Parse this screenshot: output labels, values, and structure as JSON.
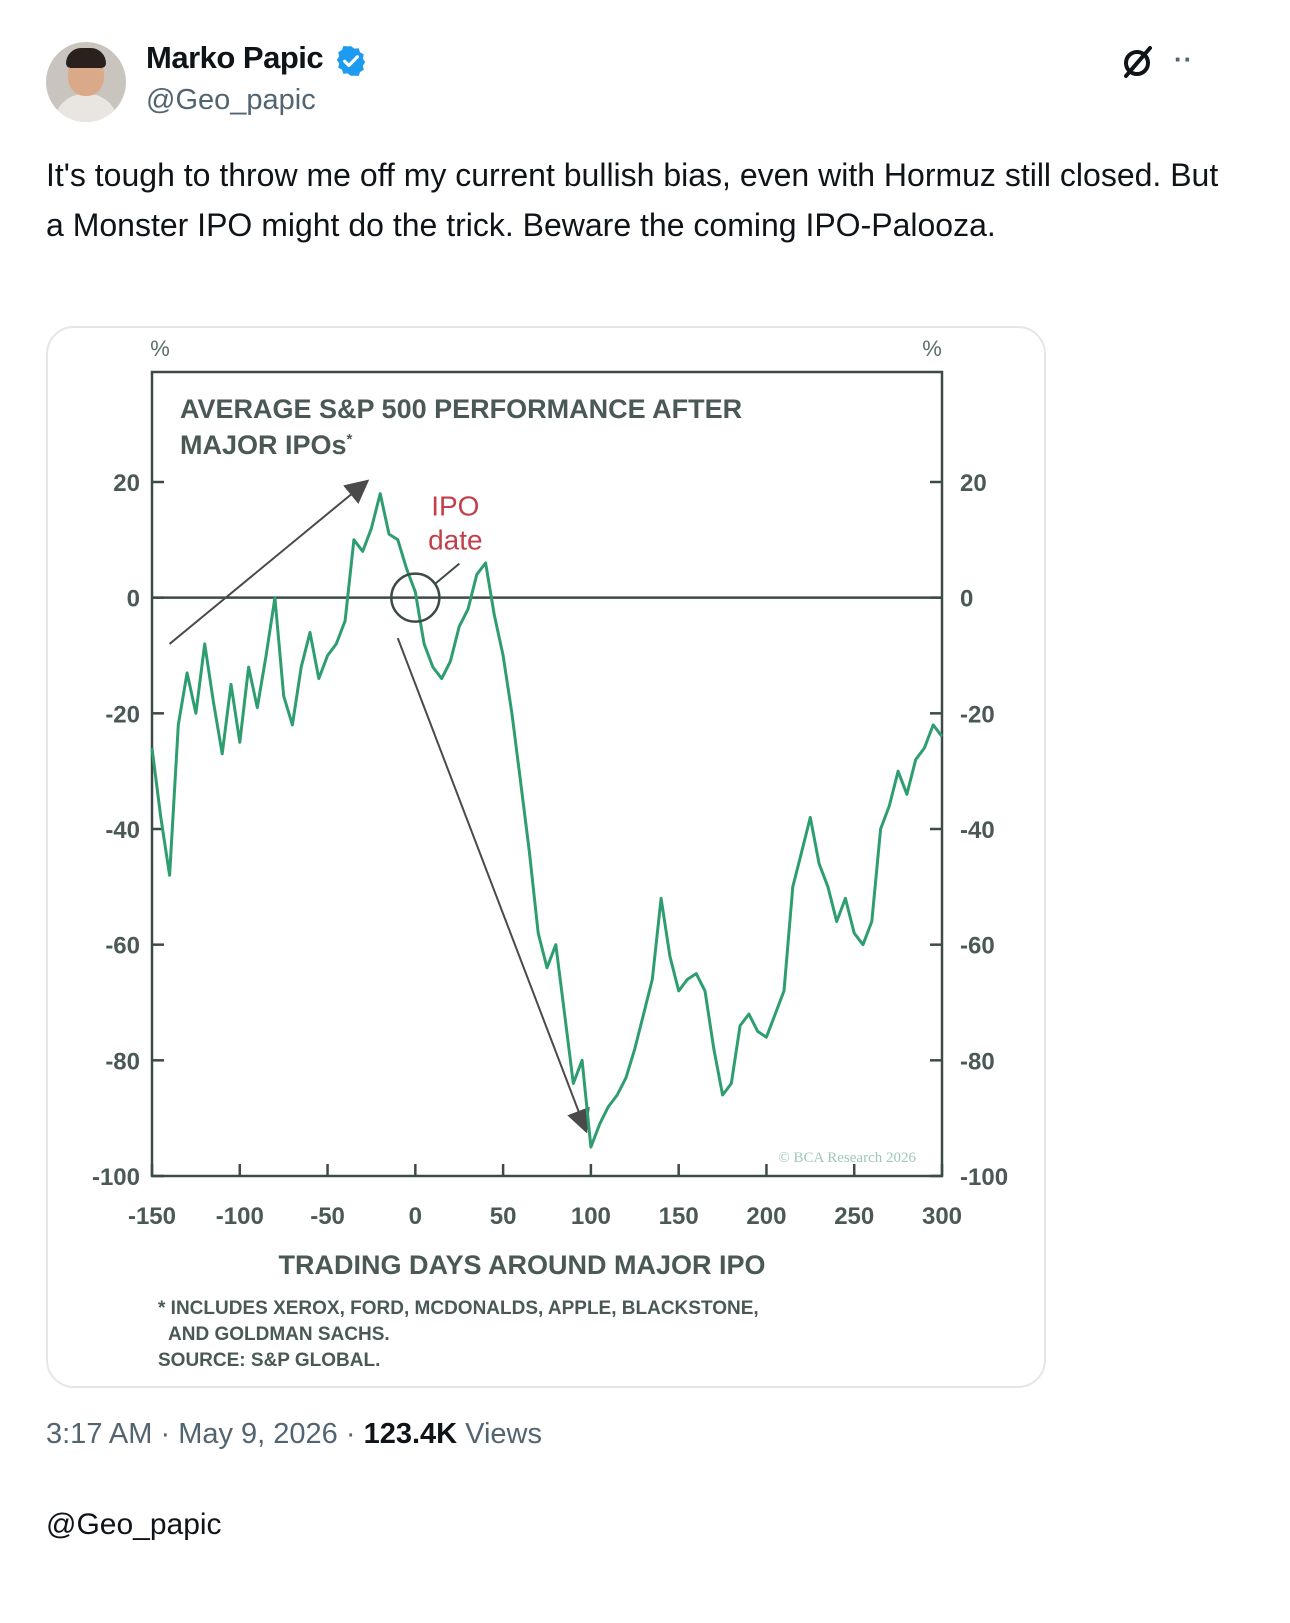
{
  "author": {
    "name": "Marko Papic",
    "handle": "@Geo_papic",
    "verified_icon": "verified-badge-icon",
    "verified_color": "#1d9bf0"
  },
  "header_actions": {
    "grok_icon": "grok-icon",
    "more_label": "··"
  },
  "tweet": {
    "text": "It's tough to throw me off my current bullish bias, even with Hormuz still closed. But a Monster IPO might do the trick. Beware the coming IPO-Palooza."
  },
  "meta": {
    "time": "3:17 AM",
    "sep1": " · ",
    "date": "May 9, 2026",
    "sep2": " · ",
    "views": "123.4K",
    "views_label": " Views"
  },
  "footer": {
    "handle": "@Geo_papic"
  },
  "chart_data": {
    "type": "line",
    "title_line1": "AVERAGE S&P 500 PERFORMANCE AFTER",
    "title_line2": "MAJOR IPOs",
    "title_mark": "*",
    "y_unit_left": "%",
    "y_unit_right": "%",
    "xlabel": "TRADING DAYS AROUND MAJOR IPO",
    "xlim": [
      -150,
      300
    ],
    "ylim": [
      -100,
      20
    ],
    "x_ticks": [
      -150,
      -100,
      -50,
      0,
      50,
      100,
      150,
      200,
      250,
      300
    ],
    "y_ticks": [
      20,
      0,
      -20,
      -40,
      -60,
      -80,
      -100
    ],
    "annotation": {
      "text_line1": "IPO",
      "text_line2": "date",
      "x": 0,
      "y": 0,
      "color": "#c0414b"
    },
    "copyright": "© BCA Research 2026",
    "footnote_line1": "* INCLUDES XEROX, FORD, MCDONALDS, APPLE, BLACKSTONE,",
    "footnote_line2": "AND GOLDMAN SACHS.",
    "source": "SOURCE: S&P GLOBAL.",
    "series_color": "#2e9e70",
    "grid": false,
    "series": [
      {
        "x": [
          -150,
          -145,
          -140,
          -135,
          -130,
          -125,
          -120,
          -115,
          -110,
          -105,
          -100,
          -95,
          -90,
          -85,
          -80,
          -75,
          -70,
          -65,
          -60,
          -55,
          -50,
          -45,
          -40,
          -35,
          -30,
          -25,
          -20,
          -15,
          -10,
          -5,
          0,
          5,
          10,
          15,
          20,
          25,
          30,
          35,
          40,
          45,
          50,
          55,
          60,
          65,
          70,
          75,
          80,
          85,
          90,
          95,
          100,
          105,
          110,
          115,
          120,
          125,
          130,
          135,
          140,
          145,
          150,
          155,
          160,
          165,
          170,
          175,
          180,
          185,
          190,
          195,
          200,
          205,
          210,
          215,
          220,
          225,
          230,
          235,
          240,
          245,
          250,
          255,
          260,
          265,
          270,
          275,
          280,
          285,
          290,
          295,
          300
        ],
        "y": [
          -26,
          -38,
          -48,
          -22,
          -13,
          -20,
          -8,
          -18,
          -27,
          -15,
          -25,
          -12,
          -19,
          -10,
          0,
          -17,
          -22,
          -12,
          -6,
          -14,
          -10,
          -8,
          -4,
          10,
          8,
          12,
          18,
          11,
          10,
          5,
          1,
          -8,
          -12,
          -14,
          -11,
          -5,
          -2,
          4,
          6,
          -3,
          -10,
          -20,
          -32,
          -44,
          -58,
          -64,
          -60,
          -72,
          -84,
          -80,
          -95,
          -91,
          -88,
          -86,
          -83,
          -78,
          -72,
          -66,
          -52,
          -62,
          -68,
          -66,
          -65,
          -68,
          -78,
          -86,
          -84,
          -74,
          -72,
          -75,
          -76,
          -72,
          -68,
          -50,
          -44,
          -38,
          -46,
          -50,
          -56,
          -52,
          -58,
          -60,
          -56,
          -40,
          -36,
          -30,
          -34,
          -28,
          -26,
          -22,
          -24
        ]
      }
    ]
  }
}
